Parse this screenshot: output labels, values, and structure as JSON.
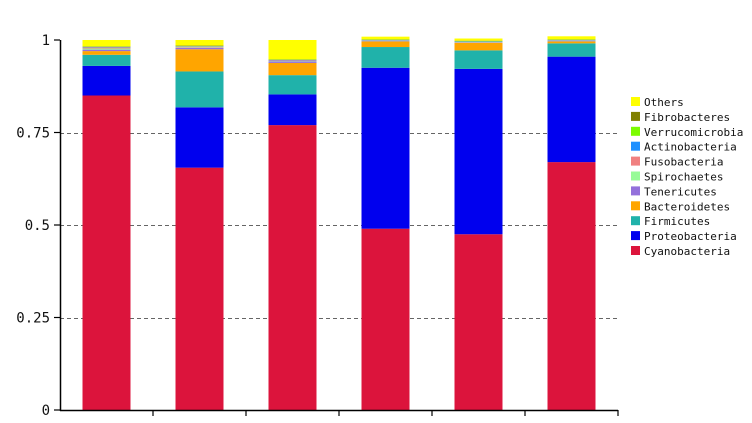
{
  "chart_data": {
    "type": "bar",
    "stacked": true,
    "grid": "horizontal dashed",
    "legend_position": "right",
    "xlabel": "",
    "ylabel": "",
    "ylim": [
      0,
      1
    ],
    "yticks": [
      0,
      0.25,
      0.5,
      0.75,
      1
    ],
    "ytick_labels": [
      "0",
      "0.25",
      "0.5",
      "0.75",
      "1"
    ],
    "categories": [
      "",
      "",
      "",
      "",
      "",
      ""
    ],
    "series": [
      {
        "name": "Cyanobacteria",
        "color": "#dc143c",
        "values": [
          0.85,
          0.655,
          0.77,
          0.49,
          0.475,
          0.67
        ]
      },
      {
        "name": "Proteobacteria",
        "color": "#0000ee",
        "values": [
          0.08,
          0.163,
          0.083,
          0.435,
          0.447,
          0.285
        ]
      },
      {
        "name": "Firmicutes",
        "color": "#20b2aa",
        "values": [
          0.03,
          0.097,
          0.052,
          0.056,
          0.05,
          0.036
        ]
      },
      {
        "name": "Bacteroidetes",
        "color": "#ffa500",
        "values": [
          0.01,
          0.06,
          0.033,
          0.015,
          0.02,
          0.005
        ]
      },
      {
        "name": "Tenericutes",
        "color": "#9370db",
        "values": [
          0.004,
          0.004,
          0.004,
          0.001,
          0.001,
          0.001
        ]
      },
      {
        "name": "Spirochaetes",
        "color": "#98fb98",
        "values": [
          0.003,
          0.001,
          0.001,
          0.001,
          0.001,
          0.001
        ]
      },
      {
        "name": "Fusobacteria",
        "color": "#f08080",
        "values": [
          0.003,
          0.002,
          0.002,
          0.001,
          0.001,
          0.001
        ]
      },
      {
        "name": "Actinobacteria",
        "color": "#1e90ff",
        "values": [
          0.001,
          0.001,
          0.001,
          0.001,
          0.001,
          0.001
        ]
      },
      {
        "name": "Verrucomicrobia",
        "color": "#7cfc00",
        "values": [
          0.001,
          0.001,
          0.001,
          0.001,
          0.001,
          0.001
        ]
      },
      {
        "name": "Fibrobacteres",
        "color": "#808000",
        "values": [
          0.001,
          0.001,
          0.001,
          0.001,
          0.001,
          0.001
        ]
      },
      {
        "name": "Others",
        "color": "#ffff00",
        "values": [
          0.017,
          0.015,
          0.052,
          0.007,
          0.006,
          0.008
        ]
      }
    ]
  }
}
